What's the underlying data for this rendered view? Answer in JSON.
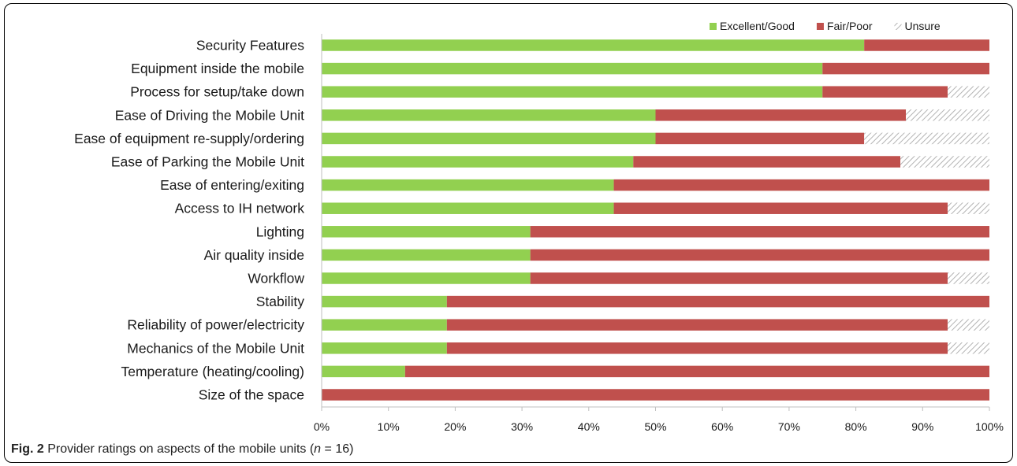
{
  "chart_data": {
    "type": "bar",
    "orientation": "horizontal",
    "stacked": true,
    "categories": [
      "Security Features",
      "Equipment inside the mobile",
      "Process for setup/take down",
      "Ease of Driving the Mobile Unit",
      "Ease of equipment re-supply/ordering",
      "Ease of Parking the Mobile Unit",
      "Ease of entering/exiting",
      "Access to IH network",
      "Lighting",
      "Air quality inside",
      "Workflow",
      "Stability",
      "Reliability of power/electricity",
      "Mechanics of the Mobile Unit",
      "Temperature (heating/cooling)",
      "Size of the space"
    ],
    "series": [
      {
        "name": "Excellent/Good",
        "color": "#92d050",
        "values": [
          81.25,
          75,
          75,
          50,
          50,
          46.67,
          43.75,
          43.75,
          31.25,
          31.25,
          31.25,
          18.75,
          18.75,
          18.75,
          12.5,
          0
        ]
      },
      {
        "name": "Fair/Poor",
        "color": "#c0504d",
        "values": [
          18.75,
          25,
          18.75,
          37.5,
          31.25,
          40,
          56.25,
          50,
          68.75,
          68.75,
          62.5,
          81.25,
          75,
          75,
          87.5,
          100
        ]
      },
      {
        "name": "Unsure",
        "pattern": "hatch",
        "values": [
          0,
          0,
          6.25,
          12.5,
          18.75,
          13.33,
          0,
          6.25,
          0,
          0,
          6.25,
          0,
          6.25,
          6.25,
          0,
          0
        ]
      }
    ],
    "xlim": [
      0,
      100
    ],
    "xticks": [
      "0%",
      "10%",
      "20%",
      "30%",
      "40%",
      "50%",
      "60%",
      "70%",
      "80%",
      "90%",
      "100%"
    ],
    "legend_position": "top-right",
    "grid": false
  },
  "caption": {
    "fig_label": "Fig. 2",
    "text_before": " Provider ratings on aspects of the mobile units (",
    "n_symbol": "n",
    "text_after": " = 16)"
  }
}
